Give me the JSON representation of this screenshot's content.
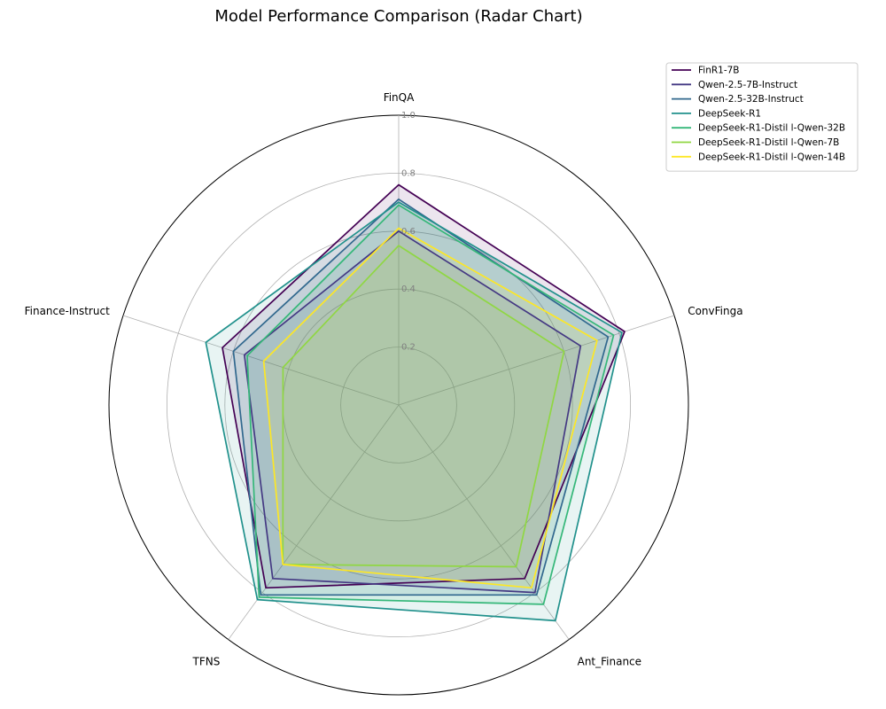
{
  "chart_data": {
    "type": "radar",
    "title": "Model Performance Comparison (Radar Chart)",
    "axes": [
      "FinQA",
      "ConvFinga",
      "Ant_Finance",
      "TFNS",
      "Finance-Instruct"
    ],
    "rlim": [
      0,
      1.0
    ],
    "r_ticks": [
      "0.2",
      "0.4",
      "0.6",
      "0.8",
      "1.0"
    ],
    "grid": true,
    "legend_position": "top-right",
    "series": [
      {
        "name": "FinR1-7B",
        "color": "#440154",
        "values": [
          0.76,
          0.82,
          0.74,
          0.78,
          0.64
        ]
      },
      {
        "name": "Qwen-2.5-7B-Instruct",
        "color": "#443983",
        "values": [
          0.6,
          0.66,
          0.8,
          0.74,
          0.56
        ]
      },
      {
        "name": "Qwen-2.5-32B-Instruct",
        "color": "#31688e",
        "values": [
          0.71,
          0.76,
          0.81,
          0.81,
          0.6
        ]
      },
      {
        "name": "DeepSeek-R1",
        "color": "#21918c",
        "values": [
          0.7,
          0.81,
          0.92,
          0.83,
          0.7
        ]
      },
      {
        "name": "DeepSeek-R1-Distil l-Qwen-32B",
        "color": "#35b779",
        "values": [
          0.69,
          0.78,
          0.85,
          0.82,
          0.55
        ]
      },
      {
        "name": "DeepSeek-R1-Distil l-Qwen-7B",
        "color": "#90d743",
        "values": [
          0.55,
          0.6,
          0.69,
          0.68,
          0.42
        ]
      },
      {
        "name": "DeepSeek-R1-Distil l-Qwen-14B",
        "color": "#fde725",
        "values": [
          0.61,
          0.72,
          0.78,
          0.68,
          0.49
        ]
      }
    ]
  }
}
